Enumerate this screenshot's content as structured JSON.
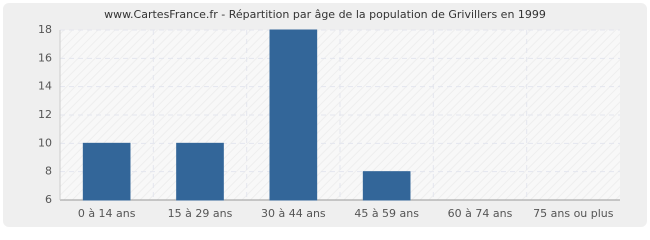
{
  "chart_data": {
    "type": "bar",
    "title": "www.CartesFrance.fr - Répartition par âge de la population de Grivillers en 1999",
    "categories": [
      "0 à 14 ans",
      "15 à 29 ans",
      "30 à 44 ans",
      "45 à 59 ans",
      "60 à 74 ans",
      "75 ans ou plus"
    ],
    "values": [
      10,
      10,
      18,
      8,
      6,
      6
    ],
    "color": "#336699",
    "ylim": [
      6,
      18
    ],
    "yticks": [
      6,
      8,
      10,
      12,
      14,
      16,
      18
    ],
    "grid": true
  }
}
